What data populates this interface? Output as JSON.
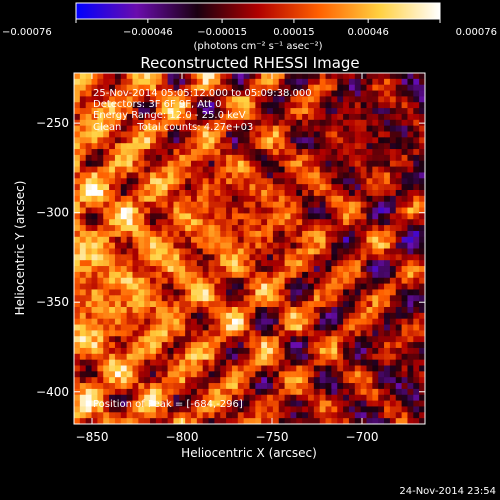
{
  "chart_data": {
    "type": "heatmap",
    "title": "Reconstructed RHESSI Image",
    "xlabel": "Heliocentric X (arcsec)",
    "ylabel": "Heliocentric Y (arcsec)",
    "xlim": [
      -860,
      -665
    ],
    "ylim": [
      -418,
      -222
    ],
    "x_ticks": [
      {
        "value": -850,
        "label": "−850"
      },
      {
        "value": -800,
        "label": "−800"
      },
      {
        "value": -750,
        "label": "−750"
      },
      {
        "value": -700,
        "label": "−700"
      }
    ],
    "y_ticks": [
      {
        "value": -250,
        "label": "−250"
      },
      {
        "value": -300,
        "label": "−300"
      },
      {
        "value": -350,
        "label": "−350"
      },
      {
        "value": -400,
        "label": "−400"
      }
    ],
    "colorbar": {
      "min": -0.00076,
      "max": 0.00076,
      "ticks": [
        {
          "value": -0.00076,
          "label": "−0.00076"
        },
        {
          "value": -0.00046,
          "label": "−0.00046"
        },
        {
          "value": -0.00015,
          "label": "−0.00015"
        },
        {
          "value": 0.00015,
          "label": "0.00015"
        },
        {
          "value": 0.00046,
          "label": "0.00046"
        },
        {
          "value": 0.00076,
          "label": "0.00076"
        }
      ],
      "unit_label": "(photons cm⁻² s⁻¹ asec⁻²)",
      "colors": [
        "#0000ff",
        "#6a0dad",
        "#1a0010",
        "#b00000",
        "#ff6000",
        "#ffd040",
        "#ffffff"
      ]
    },
    "annotations": {
      "time_range": "25-Nov-2014 05:05:12.000 to 05:09:38.000",
      "detectors": "Detectors: 3F 6F 9F, Att 0",
      "energy_range": "Energy Range: 12.0 - 25.0 keV",
      "algorithm": "Clean     Total counts: 4.27e+03",
      "peak": "Position of Peak = [-684,-296]"
    },
    "grid": false
  },
  "footer": {
    "timestamp": "24-Nov-2014 23:54"
  }
}
